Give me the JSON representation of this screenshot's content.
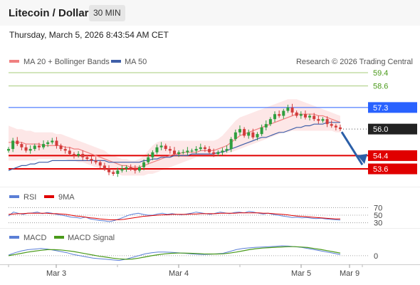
{
  "header": {
    "title": "Litecoin / Dollar",
    "interval": "30 MIN",
    "datetime": "Thursday, March 5, 2026 8:43:54 AM CET",
    "copyright": "Research © 2026 Trading Central"
  },
  "colors": {
    "ma20": "#f08080",
    "bollinger_fill": "#fde3e3",
    "ma50": "#3f5fa8",
    "green_level": "#a6cc7a",
    "green_text": "#4a9a1a",
    "blue_level": "#2962ff",
    "red_level": "#e00000",
    "price_tag": "#222222",
    "rsi": "#5b7fd6",
    "rsi_ma": "#e00000",
    "macd": "#5b7fd6",
    "macd_signal": "#4a9a1a",
    "candle_up": "#2e9e3e",
    "candle_down": "#d23c3c",
    "arrow": "#2b5fa8"
  },
  "chart_data": [
    {
      "type": "candlestick",
      "legend": [
        "MA 20 + Bollinger Bands",
        "MA 50"
      ],
      "x_ticks": [
        "Mar 3",
        "Mar 4",
        "Mar 5",
        "Mar 9"
      ],
      "y_range": [
        52.7,
        60.0
      ],
      "levels": [
        {
          "value": 59.4,
          "label": "59.4",
          "kind": "green"
        },
        {
          "value": 58.6,
          "label": "58.6",
          "kind": "green"
        },
        {
          "value": 57.3,
          "label": "57.3",
          "kind": "blue"
        },
        {
          "value": 56.0,
          "label": "56.0",
          "kind": "price"
        },
        {
          "value": 54.4,
          "label": "54.4",
          "kind": "red"
        },
        {
          "value": 53.6,
          "label": "53.6",
          "kind": "red"
        }
      ],
      "closes": [
        54.8,
        55.3,
        55.1,
        54.9,
        54.7,
        54.8,
        55.0,
        54.9,
        55.1,
        55.2,
        55.3,
        55.0,
        54.8,
        54.7,
        54.5,
        54.4,
        54.5,
        54.3,
        54.2,
        54.1,
        54.0,
        53.8,
        53.6,
        53.4,
        53.3,
        53.5,
        53.6,
        53.7,
        53.6,
        53.5,
        53.7,
        54.0,
        54.3,
        54.6,
        54.9,
        55.0,
        54.8,
        54.7,
        54.5,
        54.6,
        54.6,
        54.7,
        54.7,
        54.8,
        54.9,
        54.8,
        54.6,
        54.5,
        54.6,
        54.7,
        54.8,
        55.4,
        55.8,
        56.0,
        55.6,
        55.8,
        55.5,
        55.7,
        56.1,
        56.3,
        56.6,
        56.9,
        56.8,
        57.1,
        57.3,
        57.0,
        56.8,
        56.9,
        56.7,
        56.8,
        56.6,
        56.5,
        56.6,
        56.3,
        56.2,
        56.1,
        56.0
      ],
      "bb_upper": [
        56.2,
        56.1,
        56.0,
        56.0,
        55.9,
        55.9,
        55.8,
        55.8,
        55.8,
        55.8,
        55.8,
        55.7,
        55.7,
        55.6,
        55.5,
        55.4,
        55.3,
        55.2,
        55.1,
        55.0,
        54.9,
        54.8,
        54.7,
        54.5,
        54.4,
        54.3,
        54.2,
        54.2,
        54.1,
        54.1,
        54.2,
        54.4,
        54.7,
        55.0,
        55.2,
        55.3,
        55.3,
        55.3,
        55.3,
        55.3,
        55.3,
        55.3,
        55.3,
        55.3,
        55.3,
        55.3,
        55.3,
        55.3,
        55.4,
        55.6,
        55.9,
        56.2,
        56.5,
        56.7,
        56.8,
        56.9,
        57.0,
        57.1,
        57.2,
        57.3,
        57.4,
        57.5,
        57.6,
        57.7,
        57.8,
        57.8,
        57.8,
        57.7,
        57.6,
        57.5,
        57.4,
        57.3,
        57.2,
        57.1,
        57.0,
        56.9,
        56.8
      ],
      "ma20": [
        55.2,
        55.2,
        55.2,
        55.2,
        55.1,
        55.1,
        55.1,
        55.1,
        55.0,
        55.0,
        55.0,
        55.0,
        55.0,
        54.9,
        54.9,
        54.8,
        54.8,
        54.7,
        54.6,
        54.5,
        54.4,
        54.3,
        54.2,
        54.1,
        54.0,
        53.9,
        53.8,
        53.8,
        53.7,
        53.7,
        53.7,
        53.8,
        53.9,
        54.0,
        54.1,
        54.2,
        54.3,
        54.4,
        54.5,
        54.5,
        54.6,
        54.6,
        54.6,
        54.6,
        54.7,
        54.7,
        54.7,
        54.7,
        54.8,
        54.9,
        55.0,
        55.2,
        55.4,
        55.6,
        55.7,
        55.8,
        55.9,
        56.0,
        56.1,
        56.2,
        56.3,
        56.4,
        56.5,
        56.6,
        56.7,
        56.8,
        56.9,
        56.9,
        56.9,
        56.9,
        56.9,
        56.8,
        56.8,
        56.7,
        56.6,
        56.5,
        56.4
      ],
      "bb_lower": [
        54.1,
        54.1,
        54.1,
        54.1,
        54.1,
        54.1,
        54.1,
        54.2,
        54.2,
        54.2,
        54.2,
        54.2,
        54.2,
        54.2,
        54.1,
        54.1,
        54.0,
        54.0,
        53.9,
        53.8,
        53.7,
        53.6,
        53.5,
        53.4,
        53.3,
        53.3,
        53.2,
        53.2,
        53.2,
        53.2,
        53.2,
        53.2,
        53.3,
        53.3,
        53.4,
        53.5,
        53.6,
        53.7,
        53.8,
        53.9,
        54.0,
        54.1,
        54.2,
        54.3,
        54.3,
        54.3,
        54.3,
        54.3,
        54.4,
        54.4,
        54.5,
        54.6,
        54.7,
        54.8,
        54.9,
        55.0,
        55.1,
        55.2,
        55.3,
        55.4,
        55.5,
        55.6,
        55.7,
        55.8,
        55.8,
        55.9,
        55.9,
        55.9,
        55.9,
        55.9,
        55.9,
        55.9,
        55.9,
        55.9,
        55.9,
        55.8,
        55.8
      ],
      "ma50": [
        53.5,
        53.6,
        53.7,
        53.8,
        53.8,
        53.9,
        53.9,
        54.0,
        54.0,
        54.0,
        54.1,
        54.1,
        54.1,
        54.1,
        54.1,
        54.1,
        54.1,
        54.1,
        54.1,
        54.1,
        54.1,
        54.1,
        54.1,
        54.0,
        54.0,
        54.0,
        54.0,
        54.0,
        54.0,
        54.0,
        54.0,
        54.1,
        54.1,
        54.2,
        54.2,
        54.3,
        54.3,
        54.3,
        54.4,
        54.4,
        54.4,
        54.4,
        54.5,
        54.5,
        54.5,
        54.5,
        54.5,
        54.5,
        54.6,
        54.6,
        54.7,
        54.8,
        54.9,
        55.0,
        55.1,
        55.2,
        55.3,
        55.4,
        55.5,
        55.5,
        55.6,
        55.7,
        55.8,
        55.8,
        55.9,
        56.0,
        56.1,
        56.1,
        56.2,
        56.2,
        56.3,
        56.3,
        56.3,
        56.4,
        56.4,
        56.4,
        56.4
      ]
    },
    {
      "type": "line",
      "legend": [
        "RSI",
        "9MA"
      ],
      "y_ticks": [
        "70",
        "50",
        "30"
      ],
      "y_range": [
        20,
        80
      ],
      "rsi": [
        48,
        58,
        55,
        52,
        55,
        56,
        58,
        54,
        57,
        55,
        52,
        50,
        48,
        45,
        44,
        42,
        45,
        40,
        38,
        36,
        35,
        33,
        36,
        40,
        45,
        50,
        53,
        55,
        52,
        50,
        50,
        53,
        55,
        52,
        54,
        52,
        51,
        53,
        55,
        58,
        56,
        54,
        52,
        55,
        58,
        56,
        54,
        57,
        58,
        56,
        60,
        58,
        55,
        53,
        55,
        52,
        50,
        48,
        46,
        44,
        45,
        43,
        44,
        42,
        41,
        42,
        40,
        39,
        38,
        37
      ],
      "rsi_ma": [
        52,
        53,
        54,
        54,
        55,
        55,
        55,
        55,
        55,
        54,
        54,
        53,
        52,
        50,
        48,
        47,
        45,
        43,
        42,
        40,
        39,
        38,
        38,
        38,
        39,
        41,
        43,
        45,
        47,
        48,
        49,
        50,
        51,
        51,
        52,
        52,
        52,
        52,
        53,
        53,
        54,
        54,
        54,
        54,
        55,
        55,
        55,
        55,
        56,
        56,
        56,
        56,
        56,
        55,
        55,
        54,
        53,
        52,
        51,
        49,
        48,
        47,
        46,
        45,
        44,
        43,
        42,
        41,
        40,
        40
      ]
    },
    {
      "type": "line",
      "legend": [
        "MACD",
        "MACD Signal"
      ],
      "y_ticks": [
        "0"
      ],
      "y_range": [
        -0.6,
        1.0
      ],
      "macd": [
        0.05,
        0.25,
        0.4,
        0.5,
        0.55,
        0.6,
        0.55,
        0.45,
        0.35,
        0.25,
        0.1,
        0.0,
        -0.1,
        -0.2,
        -0.25,
        -0.3,
        -0.35,
        -0.4,
        -0.3,
        -0.15,
        0.0,
        0.15,
        0.25,
        0.3,
        0.3,
        0.28,
        0.25,
        0.2,
        0.15,
        0.12,
        0.1,
        0.12,
        0.15,
        0.2,
        0.35,
        0.5,
        0.6,
        0.65,
        0.7,
        0.72,
        0.75,
        0.78,
        0.82,
        0.8,
        0.75,
        0.7,
        0.6,
        0.5,
        0.4,
        0.3,
        0.2,
        0.1
      ],
      "signal": [
        0.0,
        0.1,
        0.2,
        0.3,
        0.38,
        0.45,
        0.5,
        0.5,
        0.48,
        0.42,
        0.35,
        0.25,
        0.15,
        0.05,
        -0.05,
        -0.12,
        -0.2,
        -0.26,
        -0.3,
        -0.28,
        -0.2,
        -0.1,
        0.0,
        0.08,
        0.15,
        0.2,
        0.22,
        0.22,
        0.2,
        0.18,
        0.15,
        0.14,
        0.14,
        0.16,
        0.22,
        0.3,
        0.4,
        0.5,
        0.58,
        0.63,
        0.67,
        0.7,
        0.73,
        0.75,
        0.75,
        0.72,
        0.68,
        0.6,
        0.52,
        0.42,
        0.32,
        0.22
      ]
    }
  ]
}
